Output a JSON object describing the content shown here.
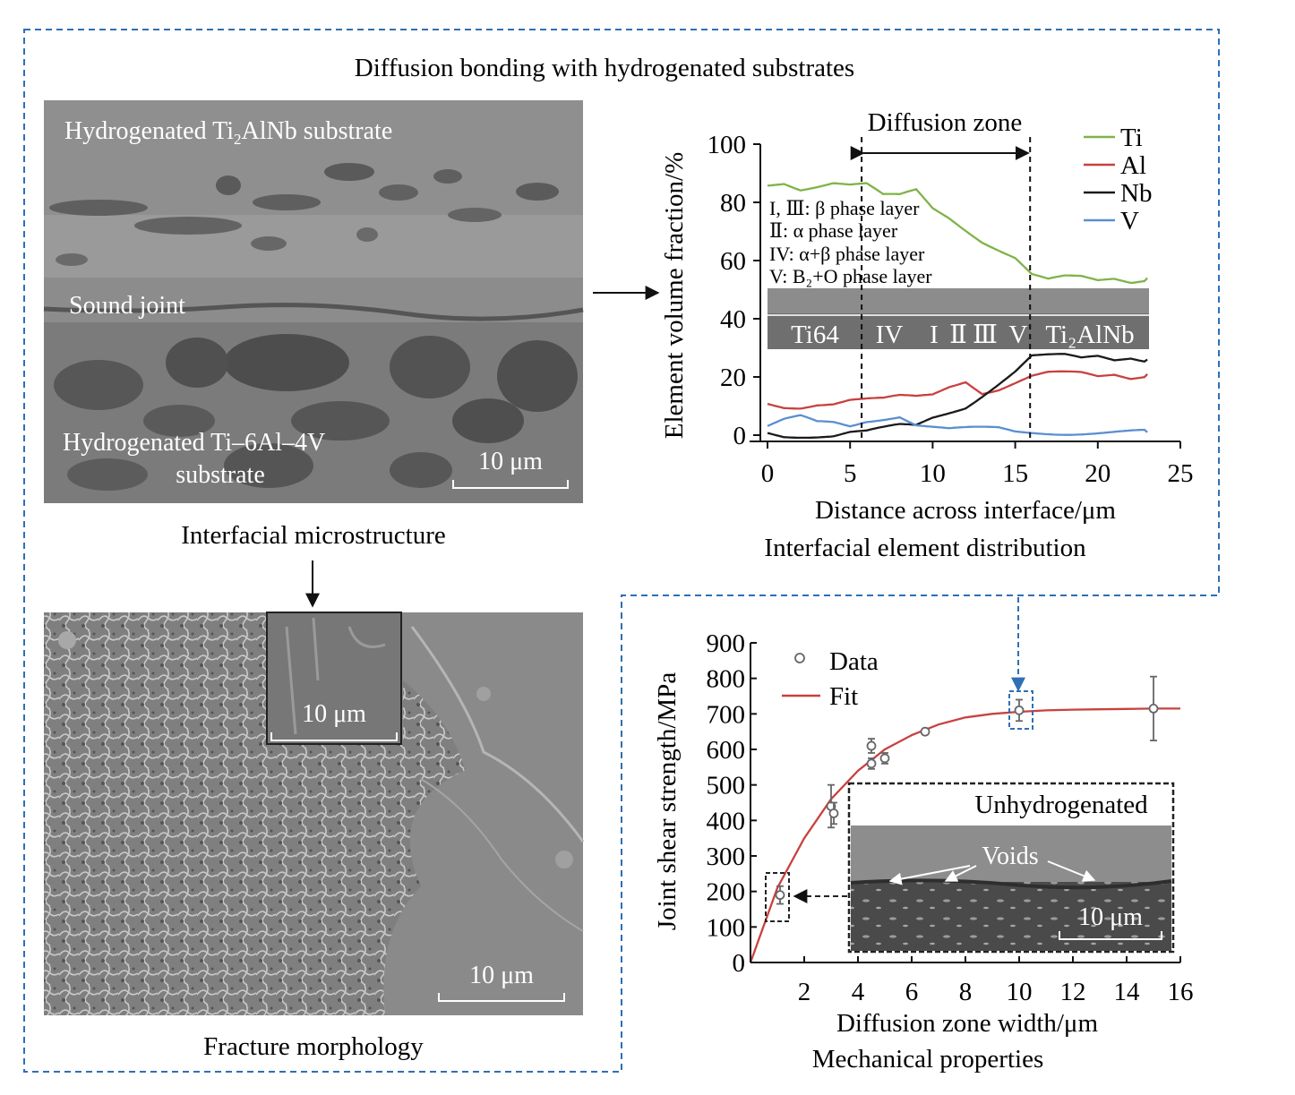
{
  "title": "Diffusion bonding with hydrogenated substrates",
  "colors": {
    "frame": "#2f6fb4",
    "ti": "#7fb348",
    "al": "#c8413f",
    "nb": "#1a1a1a",
    "v": "#5b8fd0",
    "fit": "#c8413f",
    "arrow_blue": "#2f6fb4"
  },
  "micro": {
    "label_top": "Hydrogenated Ti",
    "label_top_sub": "2",
    "label_top_rest": "AlNb substrate",
    "label_mid": "Sound joint",
    "label_bot_1": "Hydrogenated Ti–6Al–4V",
    "label_bot_2": "substrate",
    "scale": "10 μm",
    "caption": "Interfacial microstructure"
  },
  "fracture": {
    "inset_scale": "10 μm",
    "scale": "10 μm",
    "caption": "Fracture morphology"
  },
  "chart_data": [
    {
      "type": "line",
      "caption": "Interfacial element distribution",
      "xlabel": "Distance across interface/μm",
      "ylabel": "Element volume fraction/%",
      "xlim": [
        0,
        25
      ],
      "ylim": [
        0,
        100
      ],
      "xticks": [
        "0",
        "5",
        "10",
        "15",
        "20",
        "25"
      ],
      "yticks": [
        "0",
        "20",
        "40",
        "60",
        "80",
        "100"
      ],
      "legend_position": "top-right",
      "zone_label": "Diffusion zone",
      "zone_bounds": [
        5.7,
        15.9
      ],
      "phase_notes": [
        "I, Ⅲ: β phase layer",
        "Ⅱ: α phase layer",
        "IV: α+β phase layer",
        "V: B₂+O phase layer"
      ],
      "strip_labels": [
        "Ti64",
        "IV",
        "I",
        "Ⅱ",
        "Ⅲ",
        "V",
        "Ti₂AlNb"
      ],
      "series": [
        {
          "name": "Ti",
          "x": [
            0,
            1,
            2,
            3,
            4,
            5,
            6,
            7,
            8,
            9,
            10,
            11,
            12,
            13,
            14,
            15,
            16,
            17,
            18,
            19,
            20,
            21,
            22,
            23
          ],
          "values": [
            86,
            87,
            85,
            86,
            87,
            86,
            86,
            82,
            82,
            84,
            78,
            75,
            71,
            67,
            64,
            61,
            55,
            53,
            54,
            54,
            53,
            54,
            53,
            54
          ]
        },
        {
          "name": "Al",
          "x": [
            0,
            1,
            2,
            3,
            4,
            5,
            6,
            7,
            8,
            9,
            10,
            11,
            12,
            13,
            14,
            15,
            16,
            17,
            18,
            19,
            20,
            21,
            22,
            23
          ],
          "values": [
            11,
            10,
            10,
            11,
            11,
            12,
            12,
            12,
            13,
            13,
            14,
            17,
            19,
            15,
            16,
            18,
            20,
            21,
            21,
            21,
            20,
            21,
            20,
            21
          ]
        },
        {
          "name": "Nb",
          "x": [
            0,
            1,
            2,
            3,
            4,
            5,
            6,
            7,
            8,
            9,
            10,
            11,
            12,
            13,
            14,
            15,
            16,
            17,
            18,
            19,
            20,
            21,
            22,
            23
          ],
          "values": [
            1,
            0,
            0,
            0,
            0,
            1,
            1,
            2,
            3,
            3,
            6,
            8,
            10,
            14,
            18,
            22,
            27,
            27,
            27,
            26,
            27,
            26,
            27,
            26
          ]
        },
        {
          "name": "V",
          "x": [
            0,
            1,
            2,
            3,
            4,
            5,
            6,
            7,
            8,
            9,
            10,
            11,
            12,
            13,
            14,
            15,
            16,
            17,
            18,
            19,
            20,
            21,
            22,
            23
          ],
          "values": [
            3,
            5,
            6,
            4,
            4,
            3,
            5,
            6,
            7,
            4,
            3,
            2,
            2,
            2,
            2,
            1,
            1,
            1,
            1,
            1,
            1,
            1,
            1,
            1
          ]
        }
      ]
    },
    {
      "type": "scatter",
      "caption": "Mechanical properties",
      "xlabel": "Diffusion zone width/μm",
      "ylabel": "Joint shear strength/MPa",
      "xlim": [
        0,
        16
      ],
      "ylim": [
        0,
        900
      ],
      "xticks": [
        "2",
        "4",
        "6",
        "8",
        "10",
        "12",
        "14",
        "16"
      ],
      "yticks": [
        "0",
        "100",
        "200",
        "300",
        "400",
        "500",
        "600",
        "700",
        "800",
        "900"
      ],
      "legend_position": "top-left",
      "series": [
        {
          "name": "Data",
          "x": [
            1.1,
            3.0,
            3.1,
            4.5,
            4.5,
            5.0,
            6.5,
            10.0,
            15.0
          ],
          "values": [
            190,
            440,
            420,
            610,
            560,
            575,
            650,
            710,
            715
          ],
          "error": [
            25,
            60,
            30,
            20,
            15,
            15,
            0,
            30,
            90
          ]
        },
        {
          "name": "Fit",
          "x": [
            0,
            1,
            2,
            3,
            4,
            5,
            6,
            7,
            8,
            9,
            10,
            11,
            12,
            13,
            14,
            15,
            16
          ],
          "values": [
            0,
            210,
            350,
            460,
            540,
            600,
            640,
            670,
            690,
            700,
            706,
            710,
            712,
            713,
            714,
            715,
            715
          ]
        }
      ],
      "inset": {
        "label": "Unhydrogenated",
        "voids": "Voids",
        "scale": "10 μm"
      }
    }
  ]
}
